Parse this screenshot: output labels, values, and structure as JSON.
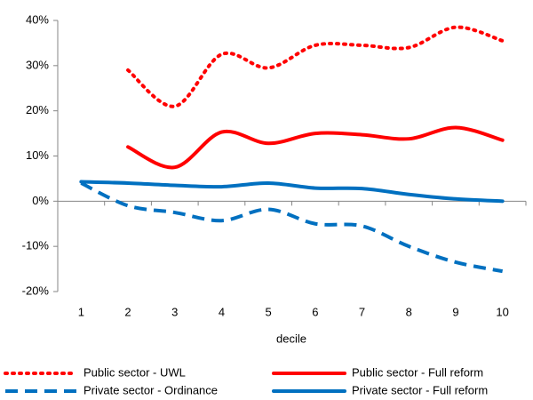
{
  "chart_data": {
    "type": "line",
    "x_label": "decile",
    "categories": [
      "1",
      "2",
      "3",
      "4",
      "5",
      "6",
      "7",
      "8",
      "9",
      "10"
    ],
    "ylim": [
      -20,
      40
    ],
    "yticks": [
      {
        "value": -20,
        "label": "-20%"
      },
      {
        "value": -10,
        "label": "-10%"
      },
      {
        "value": 0,
        "label": "0%"
      },
      {
        "value": 10,
        "label": "10%"
      },
      {
        "value": 20,
        "label": "20%"
      },
      {
        "value": 30,
        "label": "30%"
      },
      {
        "value": 40,
        "label": "40%"
      }
    ],
    "grid": false,
    "legend": "bottom",
    "series": [
      {
        "name": "Public sector  - UWL",
        "color": "#ff0000",
        "style": "dotted",
        "values": [
          null,
          29,
          21,
          32.5,
          29.5,
          34.5,
          34.5,
          34,
          38.5,
          35.5
        ]
      },
      {
        "name": "Public sector  - Full reform",
        "color": "#ff0000",
        "style": "solid",
        "values": [
          null,
          12,
          7.5,
          15.3,
          12.8,
          15,
          14.7,
          13.8,
          16.3,
          13.5
        ]
      },
      {
        "name": "Private sector  - Ordinance",
        "color": "#0070c0",
        "style": "dashed",
        "values": [
          4,
          -1,
          -2.5,
          -4.3,
          -1.8,
          -5,
          -5.5,
          -10,
          -13.5,
          -15.5
        ]
      },
      {
        "name": "Private sector  - Full reform",
        "color": "#0070c0",
        "style": "solid",
        "values": [
          4.3,
          4,
          3.5,
          3.2,
          4,
          2.9,
          2.8,
          1.5,
          0.5,
          0
        ]
      }
    ]
  }
}
